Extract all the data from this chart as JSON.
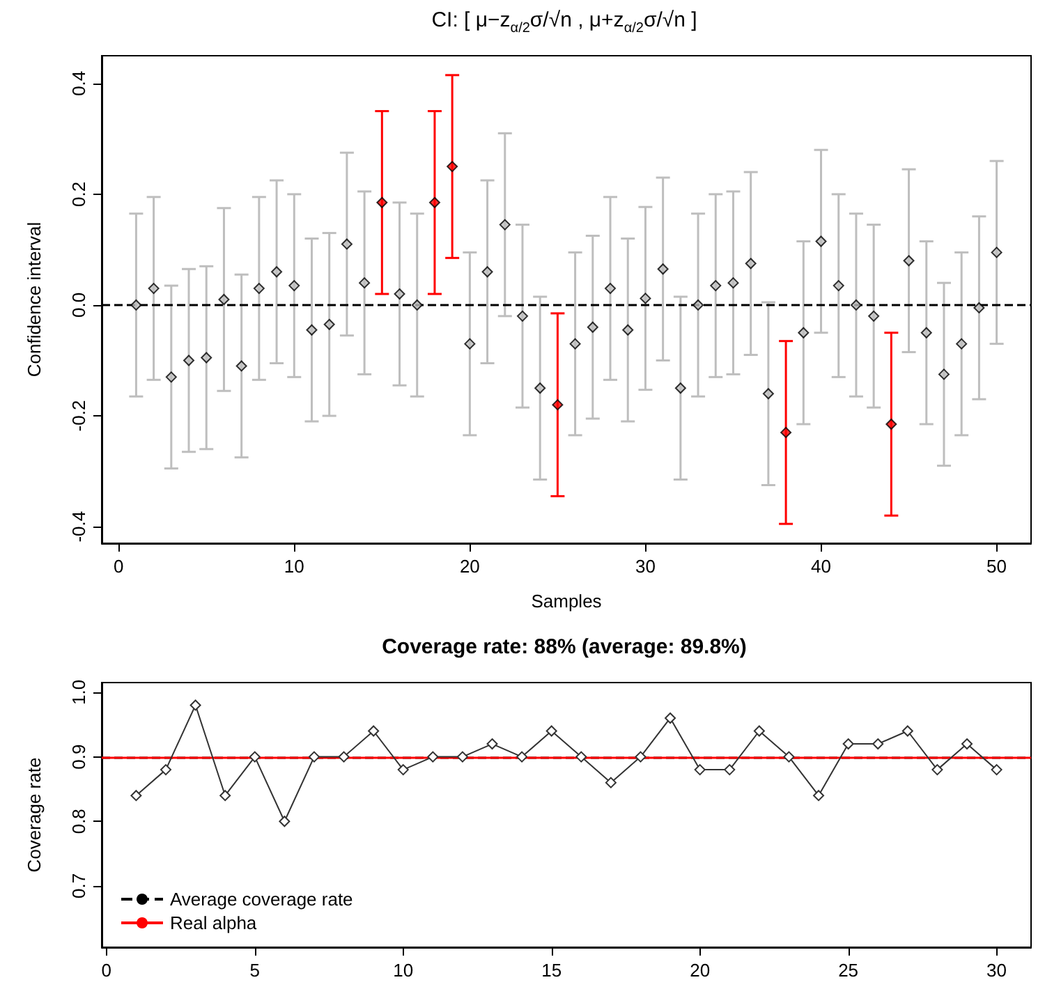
{
  "chart_data": [
    {
      "type": "scatter",
      "title": "CI: [ μ−z$_{α/2}$σ/√n ,  μ+z$_{α/2}$σ/√n ]",
      "xlabel": "Samples",
      "ylabel": "Confidence interval",
      "x": [
        1,
        2,
        3,
        4,
        5,
        6,
        7,
        8,
        9,
        10,
        11,
        12,
        13,
        14,
        15,
        16,
        17,
        18,
        19,
        20,
        21,
        22,
        23,
        24,
        25,
        26,
        27,
        28,
        29,
        30,
        31,
        32,
        33,
        34,
        35,
        36,
        37,
        38,
        39,
        40,
        41,
        42,
        43,
        44,
        45,
        46,
        47,
        48,
        49,
        50
      ],
      "values": [
        0.0,
        0.03,
        -0.13,
        -0.1,
        -0.095,
        0.01,
        -0.11,
        0.03,
        0.06,
        0.035,
        -0.045,
        -0.035,
        0.11,
        0.04,
        0.185,
        0.02,
        0.0,
        0.185,
        0.25,
        -0.07,
        0.06,
        0.145,
        -0.02,
        -0.15,
        -0.18,
        -0.07,
        -0.04,
        0.03,
        -0.045,
        0.012,
        0.065,
        -0.15,
        0.0,
        0.035,
        0.04,
        0.075,
        -0.16,
        -0.23,
        -0.05,
        0.115,
        0.035,
        0.0,
        -0.02,
        -0.215,
        0.08,
        -0.05,
        -0.125,
        -0.07,
        -0.005,
        0.095
      ],
      "errors": [
        0.165,
        0.165,
        0.165,
        0.165,
        0.165,
        0.165,
        0.165,
        0.165,
        0.165,
        0.165,
        0.165,
        0.165,
        0.165,
        0.165,
        0.165,
        0.165,
        0.165,
        0.165,
        0.165,
        0.165,
        0.165,
        0.165,
        0.165,
        0.165,
        0.165,
        0.165,
        0.165,
        0.165,
        0.165,
        0.165,
        0.165,
        0.165,
        0.165,
        0.165,
        0.165,
        0.165,
        0.165,
        0.165,
        0.165,
        0.165,
        0.165,
        0.165,
        0.165,
        0.165,
        0.165,
        0.165,
        0.165,
        0.165,
        0.165,
        0.165
      ],
      "colors": [
        "#bebebe",
        "#bebebe",
        "#bebebe",
        "#bebebe",
        "#bebebe",
        "#bebebe",
        "#bebebe",
        "#bebebe",
        "#bebebe",
        "#bebebe",
        "#bebebe",
        "#bebebe",
        "#bebebe",
        "#bebebe",
        "#ff0000",
        "#bebebe",
        "#bebebe",
        "#ff0000",
        "#ff0000",
        "#bebebe",
        "#bebebe",
        "#bebebe",
        "#bebebe",
        "#bebebe",
        "#ff0000",
        "#bebebe",
        "#bebebe",
        "#bebebe",
        "#bebebe",
        "#bebebe",
        "#bebebe",
        "#bebebe",
        "#bebebe",
        "#bebebe",
        "#bebebe",
        "#bebebe",
        "#bebebe",
        "#ff0000",
        "#bebebe",
        "#bebebe",
        "#bebebe",
        "#bebebe",
        "#bebebe",
        "#ff0000",
        "#bebebe",
        "#bebebe",
        "#bebebe",
        "#bebebe",
        "#bebebe",
        "#bebebe"
      ],
      "marker": "diamond",
      "xlim": [
        -0.96,
        51.96
      ],
      "xticks": [
        0,
        10,
        20,
        30,
        40,
        50
      ],
      "ylim": [
        -0.43,
        0.45
      ],
      "yticks": [
        -0.4,
        -0.2,
        {
          "value": 0,
          "label": "0.0"
        },
        0.2,
        0.4
      ],
      "ref_lines": [
        {
          "axis": "y",
          "value": 0,
          "color": "#000000",
          "line_style": "dashed"
        }
      ]
    },
    {
      "type": "line",
      "title": "Coverage rate: 88% (average: 89.8%)",
      "ylabel": "Coverage rate",
      "x": [
        1,
        2,
        3,
        4,
        5,
        6,
        7,
        8,
        9,
        10,
        11,
        12,
        13,
        14,
        15,
        16,
        17,
        18,
        19,
        20,
        21,
        22,
        23,
        24,
        25,
        26,
        27,
        28,
        29,
        30
      ],
      "values": [
        0.84,
        0.88,
        0.98,
        0.84,
        0.9,
        0.8,
        0.9,
        0.9,
        0.94,
        0.88,
        0.9,
        0.9,
        0.92,
        0.9,
        0.94,
        0.9,
        0.86,
        0.9,
        0.96,
        0.88,
        0.88,
        0.94,
        0.9,
        0.84,
        0.92,
        0.92,
        0.94,
        0.88,
        0.92,
        0.88
      ],
      "color": "#333333",
      "marker": "diamond",
      "line_style": "solid",
      "xlim": [
        -0.16,
        31.16
      ],
      "xticks": [
        0,
        5,
        10,
        15,
        20,
        25,
        30
      ],
      "ylim": [
        0.605,
        1.015
      ],
      "yticks": [
        0.7,
        0.8,
        0.9,
        {
          "value": 1,
          "label": "1.0"
        }
      ],
      "ref_lines": [
        {
          "axis": "y",
          "value": 0.898,
          "label": "Average coverage rate",
          "color": "#000000",
          "line_style": "dashed"
        },
        {
          "axis": "y",
          "value": 0.9,
          "label": "Real alpha",
          "color": "#ff0000",
          "line_style": "solid"
        }
      ],
      "legend": "bottom left"
    }
  ]
}
